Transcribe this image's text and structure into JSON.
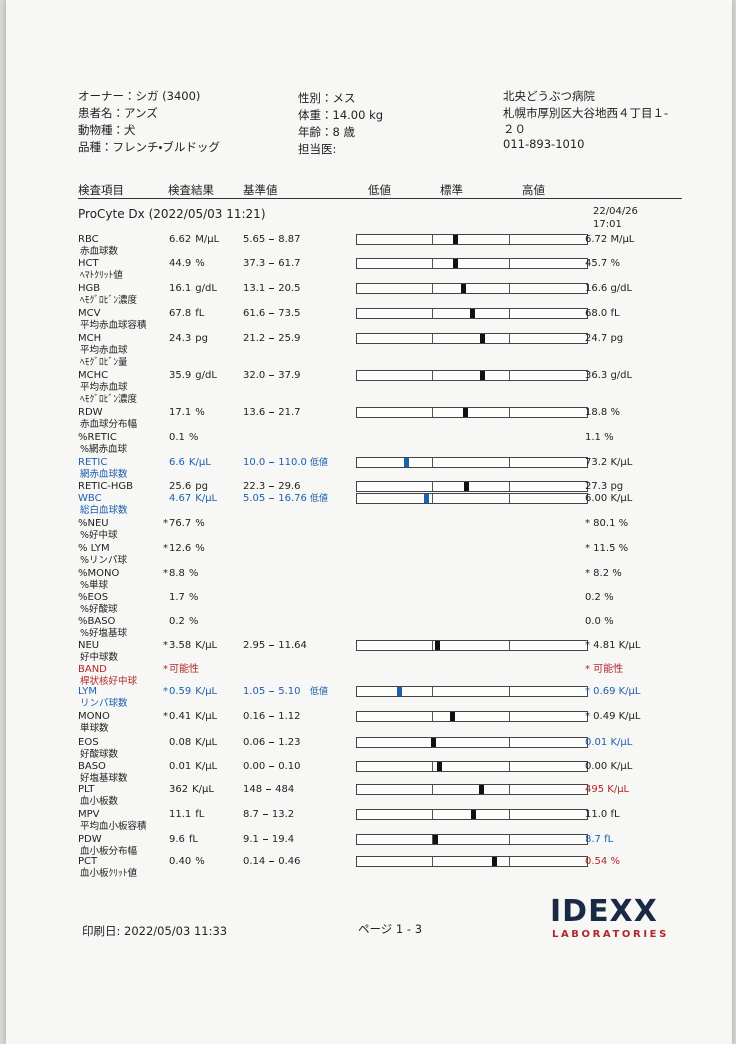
{
  "header": {
    "owner": "オーナー：シガ (3400)",
    "patient": "患者名：アンズ",
    "species": "動物種：犬",
    "breed": "品種：フレンチ・ブルドッグ",
    "sex": "性別：メス",
    "weight": "体重：14.00 kg",
    "age": "年齢：8 歳",
    "doctor": "担当医:",
    "clinic": "北央どうぶつ病院",
    "address": [
      "札幌市厚別区大谷地西４丁目１-",
      "２０"
    ],
    "phone": "011-893-1010"
  },
  "columns": {
    "item": "検査項目",
    "result": "検査結果",
    "range": "基準値",
    "low": "低値",
    "normal": "標準",
    "high": "高値"
  },
  "section": {
    "title": "ProCyte Dx (2022/05/03 11:21)",
    "prev_date": "22/04/26",
    "prev_time": "17:01"
  },
  "rows": [
    {
      "code": "RBC",
      "jp": [
        "赤血球数"
      ],
      "result": {
        "value": 6.62,
        "unit": "M/μL"
      },
      "range": {
        "low": 5.65,
        "high": 8.87
      },
      "prev": "6.72 M/μL"
    },
    {
      "code": "HCT",
      "jp": [
        "ﾍﾏﾄｸﾘｯﾄ値"
      ],
      "result": {
        "value": 44.9,
        "unit": "%"
      },
      "range": {
        "low": 37.3,
        "high": 61.7
      },
      "prev": "45.7 %"
    },
    {
      "code": "HGB",
      "jp": [
        "ﾍﾓｸﾞﾛﾋﾞﾝ濃度"
      ],
      "result": {
        "value": 16.1,
        "unit": "g/dL"
      },
      "range": {
        "low": 13.1,
        "high": 20.5
      },
      "prev": "16.6 g/dL"
    },
    {
      "code": "MCV",
      "jp": [
        "平均赤血球容積"
      ],
      "result": {
        "value": 67.8,
        "unit": "fL"
      },
      "range": {
        "low": 61.6,
        "high": 73.5
      },
      "prev": "68.0 fL"
    },
    {
      "code": "MCH",
      "jp": [
        "平均赤血球",
        "ﾍﾓｸﾞﾛﾋﾞﾝ量"
      ],
      "result": {
        "value": 24.3,
        "unit": "pg"
      },
      "range": {
        "low": 21.2,
        "high": 25.9
      },
      "prev": "24.7 pg"
    },
    {
      "code": "MCHC",
      "jp": [
        "平均赤血球",
        "ﾍﾓｸﾞﾛﾋﾞﾝ濃度"
      ],
      "result": {
        "value": 35.9,
        "unit": "g/dL"
      },
      "range": {
        "low": {
          "value": 32,
          "label": "32.0"
        },
        "high": 37.9
      },
      "prev": "36.3 g/dL"
    },
    {
      "code": "RDW",
      "jp": [
        "赤血球分布幅"
      ],
      "result": {
        "value": 17.1,
        "unit": "%"
      },
      "range": {
        "low": 13.6,
        "high": 21.7
      },
      "prev": "18.8 %"
    },
    {
      "code": "%RETIC",
      "jp": [
        "%網赤血球"
      ],
      "result": {
        "value": 0.1,
        "unit": "%"
      },
      "prev": "1.1 %"
    },
    {
      "code": "RETIC",
      "jp": [
        "網赤血球数"
      ],
      "color": "#1d5fb0",
      "flag": "低値",
      "result": {
        "value": 6.6,
        "unit": "K/μL"
      },
      "range": {
        "low": {
          "value": 10,
          "label": "10.0"
        },
        "high": {
          "value": 110,
          "label": "110.0"
        }
      },
      "prev": "73.2 K/μL"
    },
    {
      "code": "RETIC-HGB",
      "jp": [],
      "result": {
        "value": 25.6,
        "unit": "pg"
      },
      "range": {
        "low": 22.3,
        "high": 29.6
      },
      "prev": "27.3 pg"
    },
    {
      "code": "WBC",
      "jp": [
        "総白血球数"
      ],
      "color": "#1d5fb0",
      "flag": "低値",
      "result": {
        "value": 4.67,
        "unit": "K/μL"
      },
      "range": {
        "low": 5.05,
        "high": 16.76
      },
      "prev": "6.00 K/μL"
    },
    {
      "code": "%NEU",
      "jp": [
        "%好中球"
      ],
      "result": {
        "prefix": "*",
        "value": 76.7,
        "unit": "%"
      },
      "prev": "* 80.1 %"
    },
    {
      "code": "% LYM",
      "jp": [
        "%リンパ球"
      ],
      "result": {
        "prefix": "*",
        "value": 12.6,
        "unit": "%"
      },
      "prev": "* 11.5 %"
    },
    {
      "code": "%MONO",
      "jp": [
        "%単球"
      ],
      "result": {
        "prefix": "*",
        "value": 8.8,
        "unit": "%"
      },
      "prev": "* 8.2 %"
    },
    {
      "code": "%EOS",
      "jp": [
        "%好酸球"
      ],
      "result": {
        "value": 1.7,
        "unit": "%"
      },
      "prev": "0.2 %"
    },
    {
      "code": "%BASO",
      "jp": [
        "%好塩基球"
      ],
      "result": {
        "value": 0.2,
        "unit": "%"
      },
      "prev": "0.0 %"
    },
    {
      "code": "NEU",
      "jp": [
        "好中球数"
      ],
      "result": {
        "prefix": "*",
        "value": 3.58,
        "unit": "K/μL"
      },
      "range": {
        "low": 2.95,
        "high": 11.64
      },
      "prev": "* 4.81 K/μL"
    },
    {
      "code": "BAND",
      "jp": [
        "桿状核好中球"
      ],
      "color": "#b3262a",
      "result": {
        "prefix": "*",
        "text": "可能性"
      },
      "prev": "* 可能性",
      "prev_color": "#b3262a"
    },
    {
      "code": "LYM",
      "jp": [
        "リンパ球数"
      ],
      "color": "#1d5fb0",
      "flag": "低値",
      "result": {
        "prefix": "*",
        "value": 0.59,
        "unit": "K/μL"
      },
      "range": {
        "low": 1.05,
        "high": {
          "value": 5.1,
          "label": "5.10"
        }
      },
      "prev": "* 0.69 K/μL",
      "prev_color": "#1d5fb0"
    },
    {
      "code": "MONO",
      "jp": [
        "単球数"
      ],
      "result": {
        "prefix": "*",
        "value": 0.41,
        "unit": "K/μL"
      },
      "range": {
        "low": 0.16,
        "high": 1.12
      },
      "prev": "* 0.49 K/μL"
    },
    {
      "code": "EOS",
      "jp": [
        "好酸球数"
      ],
      "result": {
        "value": 0.08,
        "unit": "K/μL"
      },
      "range": {
        "low": 0.06,
        "high": 1.23
      },
      "prev": "0.01 K/μL",
      "prev_color": "#1d5fb0"
    },
    {
      "code": "BASO",
      "jp": [
        "好塩基球数"
      ],
      "result": {
        "value": 0.01,
        "unit": "K/μL"
      },
      "range": {
        "low": {
          "value": 0,
          "label": "0.00"
        },
        "high": {
          "value": 0.1,
          "label": "0.10"
        }
      },
      "prev": "0.00 K/μL"
    },
    {
      "code": "PLT",
      "jp": [
        "血小板数"
      ],
      "result": {
        "value": 362,
        "unit": "K/μL"
      },
      "range": {
        "low": 148,
        "high": 484
      },
      "prev": "495 K/μL",
      "prev_color": "#b3262a"
    },
    {
      "code": "MPV",
      "jp": [
        "平均血小板容積"
      ],
      "result": {
        "value": 11.1,
        "unit": "fL"
      },
      "range": {
        "low": 8.7,
        "high": 13.2
      },
      "prev": "11.0 fL"
    },
    {
      "code": "PDW",
      "jp": [
        "血小板分布幅"
      ],
      "result": {
        "value": 9.6,
        "unit": "fL"
      },
      "range": {
        "low": 9.1,
        "high": 19.4
      },
      "prev": "8.7 fL",
      "prev_color": "#1d5fb0"
    },
    {
      "code": "PCT",
      "jp": [
        "血小板ｸﾘｯﾄ値"
      ],
      "result": {
        "value": {
          "value": 0.4,
          "label": "0.40"
        },
        "unit": "%"
      },
      "range": {
        "low": 0.14,
        "high": 0.46
      },
      "prev": "0.54 %",
      "prev_color": "#b3262a"
    }
  ],
  "footer": {
    "printed": "印刷日: 2022/05/03 11:33",
    "page": "ページ 1 - 3",
    "logo": "IDEXX",
    "logo_sub": "LABORATORIES"
  }
}
